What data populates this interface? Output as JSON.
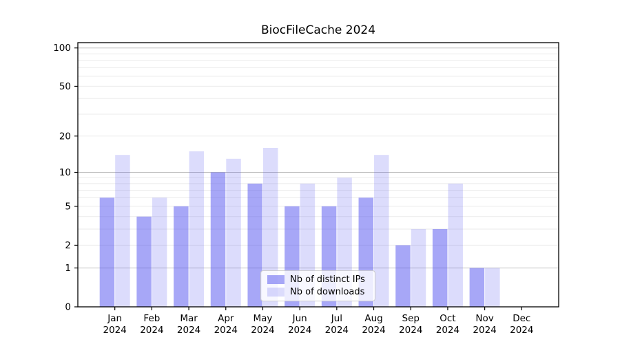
{
  "chart_data": {
    "type": "bar",
    "title": "BiocFileCache 2024",
    "categories": [
      "Jan 2024",
      "Feb 2024",
      "Mar 2024",
      "Apr 2024",
      "May 2024",
      "Jun 2024",
      "Jul 2024",
      "Aug 2024",
      "Sep 2024",
      "Oct 2024",
      "Nov 2024",
      "Dec 2024"
    ],
    "series": [
      {
        "name": "Nb of distinct IPs",
        "color": "rgba(80,80,240,0.5)",
        "values": [
          6,
          4,
          5,
          10,
          8,
          5,
          5,
          6,
          2,
          3,
          1,
          0
        ]
      },
      {
        "name": "Nb of downloads",
        "color": "rgba(80,80,240,0.2)",
        "values": [
          14,
          6,
          15,
          13,
          16,
          8,
          9,
          14,
          3,
          8,
          1,
          0
        ]
      }
    ],
    "yscale": "log1p",
    "yticks": [
      0,
      1,
      2,
      5,
      10,
      20,
      50,
      100
    ],
    "ylim": [
      0,
      110
    ],
    "grid": true,
    "grid_major_color": "#bdbdbd",
    "grid_minor_color": "#ebebeb",
    "axis_color": "#000000",
    "legend_position": "lower center",
    "xlabel": "",
    "ylabel": ""
  }
}
